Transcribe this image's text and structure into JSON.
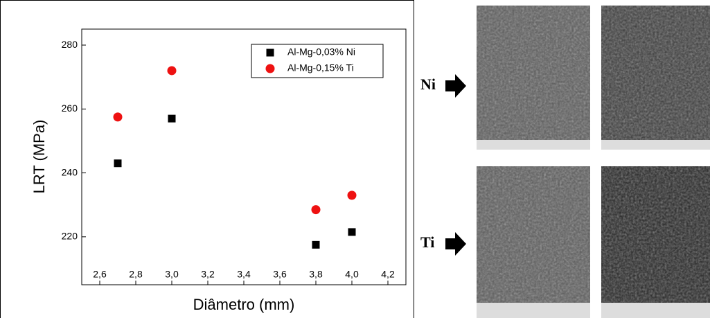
{
  "chart_data": {
    "type": "scatter",
    "x_label": "Diâmetro (mm)",
    "y_label": "LRT (MPa)",
    "xlim": [
      2.5,
      4.3
    ],
    "ylim": [
      205,
      285
    ],
    "xticks": [
      {
        "value": 2.6,
        "label": "2,6"
      },
      {
        "value": 2.8,
        "label": "2,8"
      },
      {
        "value": 3.0,
        "label": "3,0"
      },
      {
        "value": 3.2,
        "label": "3,2"
      },
      {
        "value": 3.4,
        "label": "3,4"
      },
      {
        "value": 3.6,
        "label": "3,6"
      },
      {
        "value": 3.8,
        "label": "3,8"
      },
      {
        "value": 4.0,
        "label": "4,0"
      },
      {
        "value": 4.2,
        "label": "4,2"
      }
    ],
    "yticks": [
      220,
      240,
      260,
      280
    ],
    "legend": "upper right",
    "series": [
      {
        "name": "Al-Mg-0,03% Ni",
        "color": "#000000",
        "marker": "square",
        "x": [
          2.7,
          3.0,
          3.8,
          4.0
        ],
        "values": [
          243,
          257,
          217.5,
          221.5
        ]
      },
      {
        "name": "Al-Mg-0,15% Ti",
        "color": "#ee1111",
        "marker": "circle",
        "x": [
          2.7,
          3.0,
          3.8,
          4.0
        ],
        "values": [
          257.5,
          272,
          228.5,
          233
        ]
      }
    ]
  },
  "panels": [
    {
      "label": "Ni"
    },
    {
      "label": "Ti"
    }
  ]
}
